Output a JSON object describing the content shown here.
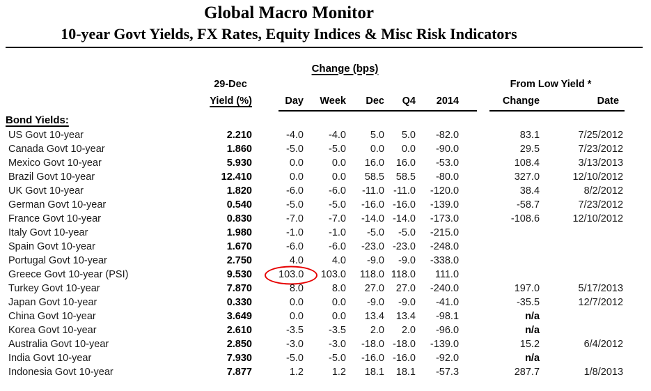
{
  "header": {
    "title": "Global Macro Monitor",
    "subtitle": "10-year Govt Yields, FX Rates, Equity Indices & Misc Risk Indicators"
  },
  "table": {
    "group_headers": {
      "change_bps": "Change (bps)",
      "from_low_yield": "From Low Yield *"
    },
    "col_headers": {
      "asof": "29-Dec",
      "yield": "Yield (%)",
      "day": "Day",
      "week": "Week",
      "dec": "Dec",
      "q4": "Q4",
      "y2014": "2014",
      "change": "Change",
      "date": "Date"
    },
    "section_label": "Bond Yields:",
    "rows": [
      {
        "label": "US Govt 10-year",
        "yield": "2.210",
        "day": "-4.0",
        "week": "-4.0",
        "dec": "5.0",
        "q4": "5.0",
        "y2014": "-82.0",
        "change": "83.1",
        "date": "7/25/2012"
      },
      {
        "label": "Canada Govt 10-year",
        "yield": "1.860",
        "day": "-5.0",
        "week": "-5.0",
        "dec": "0.0",
        "q4": "0.0",
        "y2014": "-90.0",
        "change": "29.5",
        "date": "7/23/2012"
      },
      {
        "label": "Mexico Govt 10-year",
        "yield": "5.930",
        "day": "0.0",
        "week": "0.0",
        "dec": "16.0",
        "q4": "16.0",
        "y2014": "-53.0",
        "change": "108.4",
        "date": "3/13/2013"
      },
      {
        "label": "Brazil Govt 10-year",
        "yield": "12.410",
        "day": "0.0",
        "week": "0.0",
        "dec": "58.5",
        "q4": "58.5",
        "y2014": "-80.0",
        "change": "327.0",
        "date": "12/10/2012"
      },
      {
        "label": "UK Govt 10-year",
        "yield": "1.820",
        "day": "-6.0",
        "week": "-6.0",
        "dec": "-11.0",
        "q4": "-11.0",
        "y2014": "-120.0",
        "change": "38.4",
        "date": "8/2/2012"
      },
      {
        "label": "German Govt 10-year",
        "yield": "0.540",
        "day": "-5.0",
        "week": "-5.0",
        "dec": "-16.0",
        "q4": "-16.0",
        "y2014": "-139.0",
        "change": "-58.7",
        "date": "7/23/2012"
      },
      {
        "label": "France Govt 10-year",
        "yield": "0.830",
        "day": "-7.0",
        "week": "-7.0",
        "dec": "-14.0",
        "q4": "-14.0",
        "y2014": "-173.0",
        "change": "-108.6",
        "date": "12/10/2012"
      },
      {
        "label": "Italy Govt 10-year",
        "yield": "1.980",
        "day": "-1.0",
        "week": "-1.0",
        "dec": "-5.0",
        "q4": "-5.0",
        "y2014": "-215.0",
        "change": "",
        "date": ""
      },
      {
        "label": "Spain Govt 10-year",
        "yield": "1.670",
        "day": "-6.0",
        "week": "-6.0",
        "dec": "-23.0",
        "q4": "-23.0",
        "y2014": "-248.0",
        "change": "",
        "date": ""
      },
      {
        "label": "Portugal Govt 10-year",
        "yield": "2.750",
        "day": "4.0",
        "week": "4.0",
        "dec": "-9.0",
        "q4": "-9.0",
        "y2014": "-338.0",
        "change": "",
        "date": ""
      },
      {
        "label": "Greece Govt 10-year (PSI)",
        "yield": "9.530",
        "day": "103.0",
        "week": "103.0",
        "dec": "118.0",
        "q4": "118.0",
        "y2014": "111.0",
        "change": "",
        "date": "",
        "circled": "day"
      },
      {
        "label": "Turkey Govt 10-year",
        "yield": "7.870",
        "day": "8.0",
        "week": "8.0",
        "dec": "27.0",
        "q4": "27.0",
        "y2014": "-240.0",
        "change": "197.0",
        "date": "5/17/2013"
      },
      {
        "label": "Japan Govt 10-year",
        "yield": "0.330",
        "day": "0.0",
        "week": "0.0",
        "dec": "-9.0",
        "q4": "-9.0",
        "y2014": "-41.0",
        "change": "-35.5",
        "date": "12/7/2012"
      },
      {
        "label": "China Govt 10-year",
        "yield": "3.649",
        "day": "0.0",
        "week": "0.0",
        "dec": "13.4",
        "q4": "13.4",
        "y2014": "-98.1",
        "change": "n/a",
        "date": ""
      },
      {
        "label": "Korea Govt 10-year",
        "yield": "2.610",
        "day": "-3.5",
        "week": "-3.5",
        "dec": "2.0",
        "q4": "2.0",
        "y2014": "-96.0",
        "change": "n/a",
        "date": ""
      },
      {
        "label": "Australia Govt 10-year",
        "yield": "2.850",
        "day": "-3.0",
        "week": "-3.0",
        "dec": "-18.0",
        "q4": "-18.0",
        "y2014": "-139.0",
        "change": "15.2",
        "date": "6/4/2012"
      },
      {
        "label": "India Govt 10-year",
        "yield": "7.930",
        "day": "-5.0",
        "week": "-5.0",
        "dec": "-16.0",
        "q4": "-16.0",
        "y2014": "-92.0",
        "change": "n/a",
        "date": ""
      },
      {
        "label": "Indonesia Govt 10-year",
        "yield": "7.877",
        "day": "1.2",
        "week": "1.2",
        "dec": "18.1",
        "q4": "18.1",
        "y2014": "-57.3",
        "change": "287.7",
        "date": "1/8/2013"
      }
    ],
    "annotation": {
      "type": "red-ellipse",
      "row": "Greece Govt 10-year (PSI)",
      "column": "Day",
      "circled_value": "103.0",
      "color": "#e60000"
    }
  }
}
